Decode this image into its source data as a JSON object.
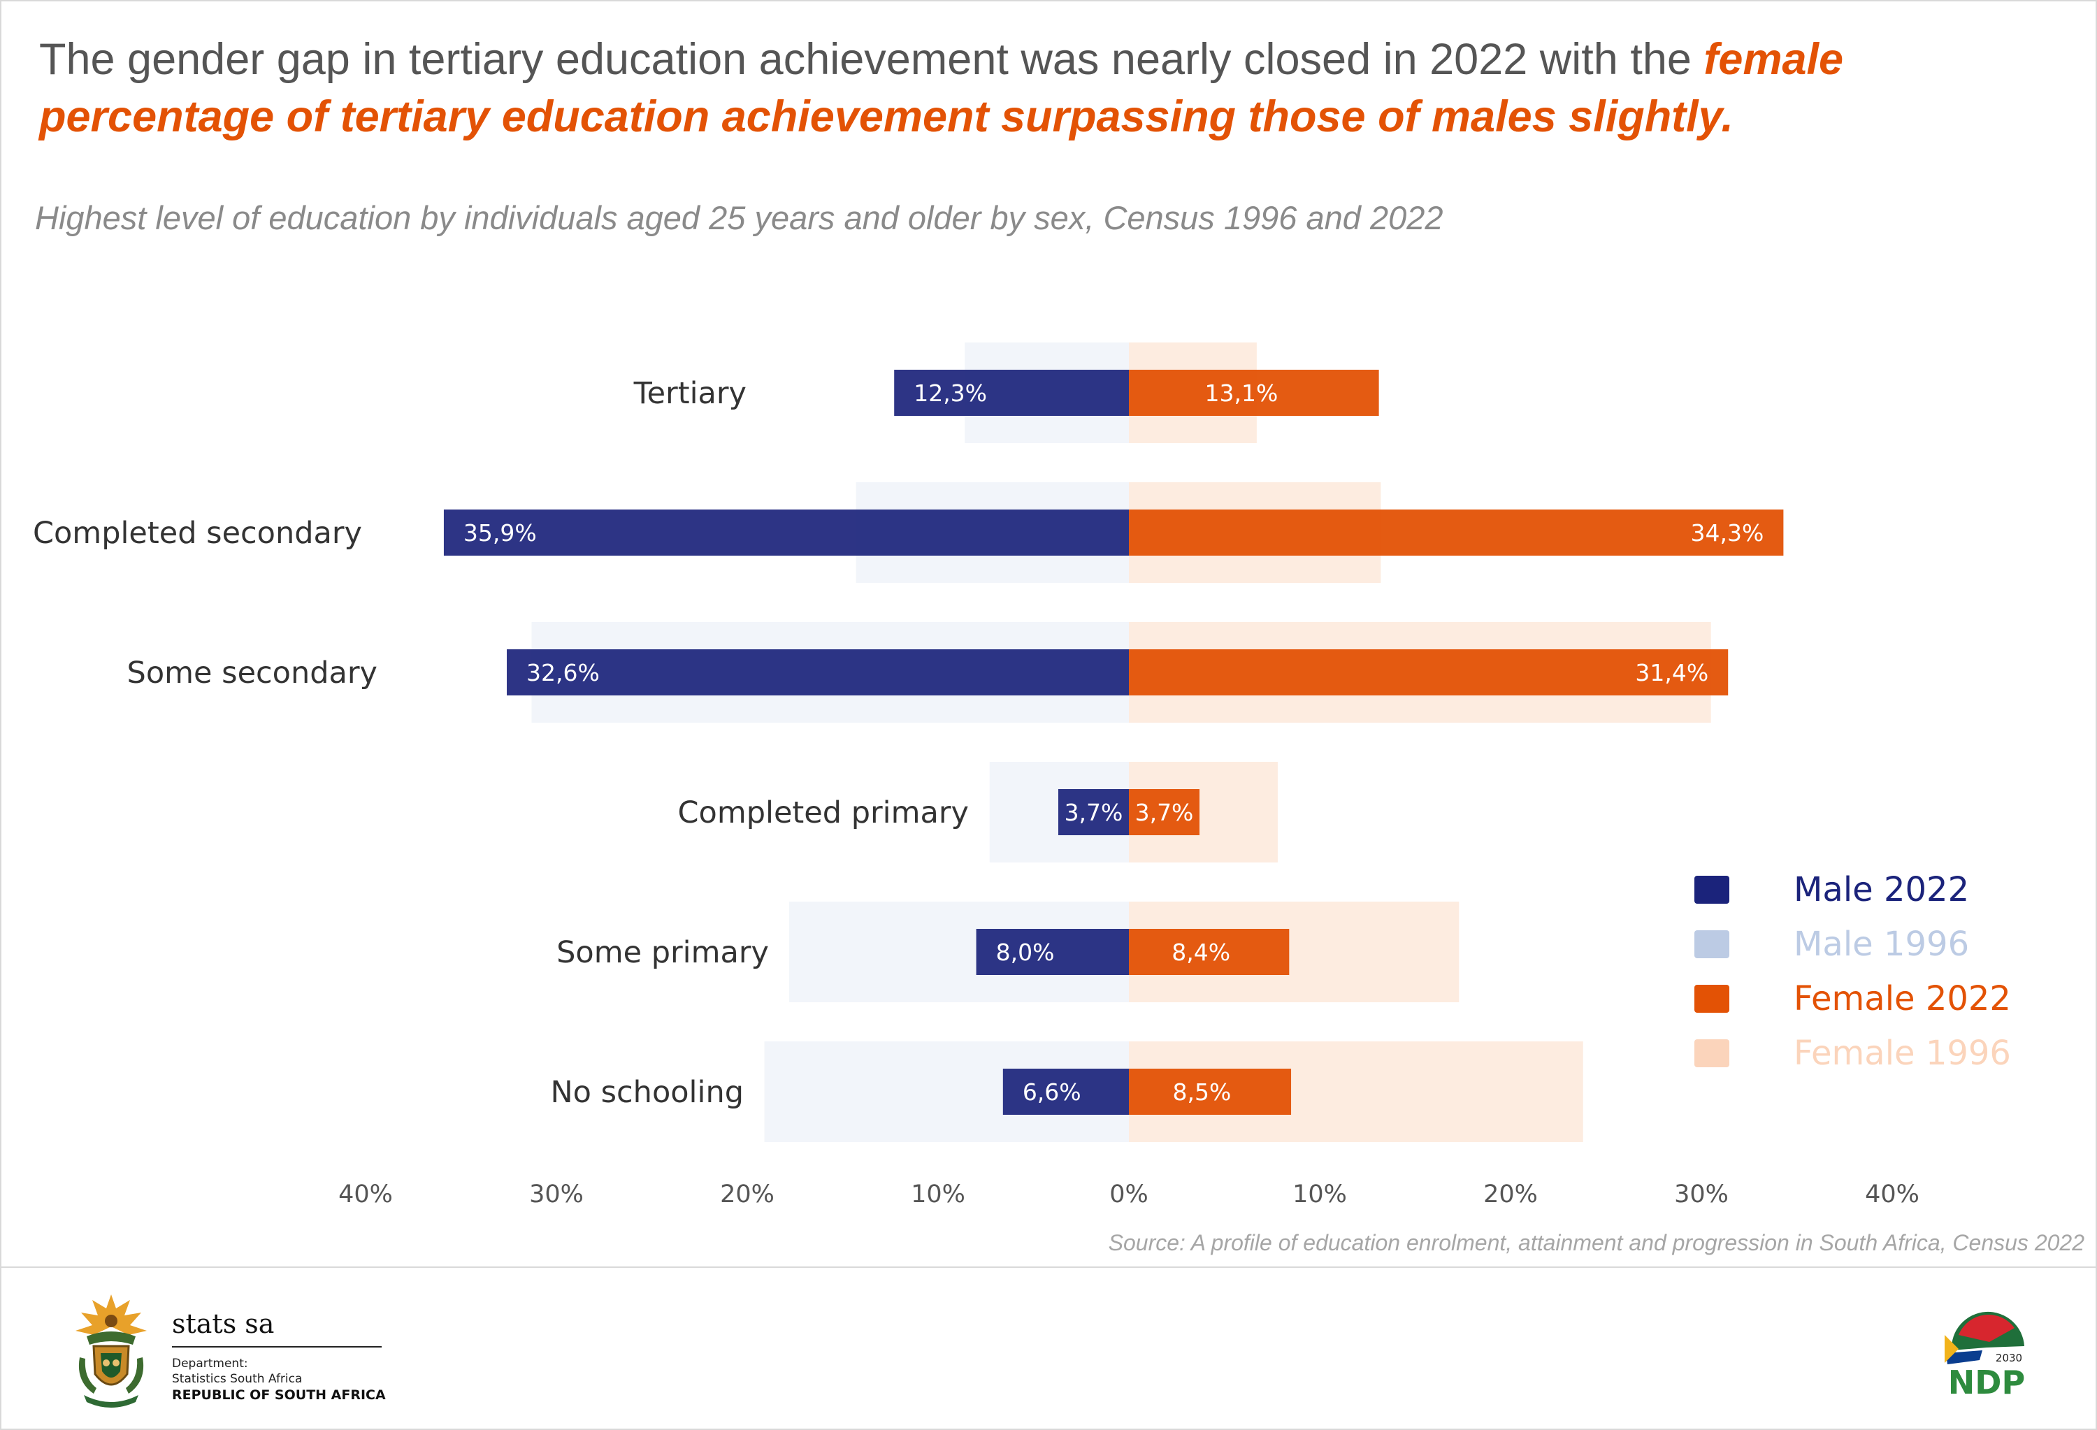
{
  "headline": {
    "plain": "The gender gap in tertiary education achievement was nearly closed in 2022 with the ",
    "highlight": "female percentage of tertiary education achievement surpassing those of males slightly."
  },
  "colors": {
    "male_2022": "#1b237b",
    "male_1996": "#bccbe4",
    "female_2022": "#e35205",
    "female_1996": "#fbd4bb",
    "headline_highlight": "#e35205"
  },
  "chart_data": {
    "type": "bar",
    "orientation": "horizontal-diverging",
    "subtitle": "Highest level of education by individuals aged 25 years and older by sex, Census 1996 and 2022",
    "categories": [
      "Tertiary",
      "Completed secondary",
      "Some secondary",
      "Completed primary",
      "Some primary",
      "No schooling"
    ],
    "series": [
      {
        "name": "Male 2022",
        "side": "left",
        "values": [
          12.3,
          35.9,
          32.6,
          3.7,
          8.0,
          6.6
        ],
        "labels": [
          "12,3%",
          "35,9%",
          "32,6%",
          "3,7%",
          "8,0%",
          "6,6%"
        ]
      },
      {
        "name": "Male 1996",
        "side": "left",
        "values": [
          8.6,
          14.3,
          31.3,
          7.3,
          17.8,
          19.1
        ]
      },
      {
        "name": "Female 2022",
        "side": "right",
        "values": [
          13.1,
          34.3,
          31.4,
          3.7,
          8.4,
          8.5
        ],
        "labels": [
          "13,1%",
          "34,3%",
          "31,4%",
          "3,7%",
          "8,4%",
          "8,5%"
        ]
      },
      {
        "name": "Female 1996",
        "side": "right",
        "values": [
          6.7,
          13.2,
          30.5,
          7.8,
          17.3,
          23.8
        ]
      }
    ],
    "xlim": [
      -40,
      40
    ],
    "x_ticks": [
      "40%",
      "30%",
      "20%",
      "10%",
      "0%",
      "10%",
      "20%",
      "30%",
      "40%"
    ],
    "legend": [
      "Male 2022",
      "Male 1996",
      "Female 2022",
      "Female 1996"
    ],
    "legend_position": "right",
    "grid": false
  },
  "source": "Source: A profile of education enrolment, attainment and progression in South Africa, Census 2022",
  "footer": {
    "brand": "stats sa",
    "dept_line1": "Department:",
    "dept_line2": "Statistics South Africa",
    "dept_line3": "REPUBLIC OF SOUTH AFRICA",
    "ndp_year": "2030",
    "ndp_text": "NDP"
  }
}
